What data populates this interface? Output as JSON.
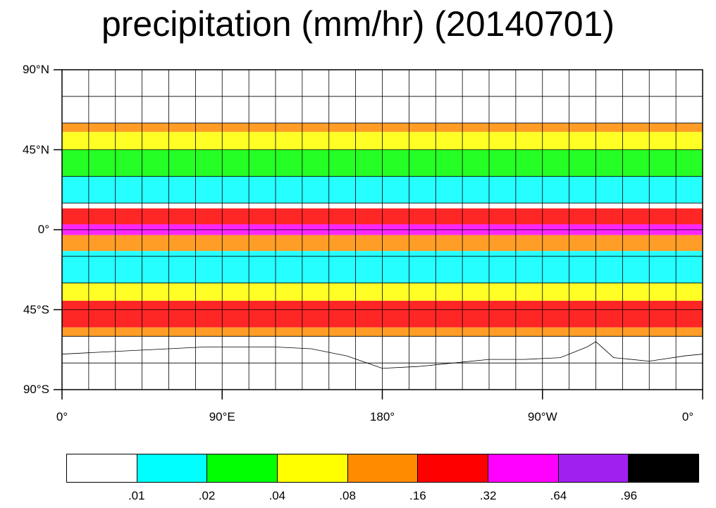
{
  "title": "precipitation (mm/hr) (20140701)",
  "lat_labels": [
    "90°N",
    "45°N",
    "0°",
    "45°S",
    "90°S"
  ],
  "lon_labels": [
    "0°",
    "90°E",
    "180°",
    "90°W",
    "0°"
  ],
  "colorbar": {
    "colors": [
      "#ffffff",
      "#00ffff",
      "#00ff00",
      "#ffff00",
      "#ff8c00",
      "#ff0000",
      "#ff00ff",
      "#a020f0",
      "#000000"
    ],
    "ticks": [
      ".01",
      ".02",
      ".04",
      ".08",
      ".16",
      ".32",
      ".64",
      ".96"
    ]
  },
  "map": {
    "lat_range": [
      -90,
      90
    ],
    "lon_range": [
      0,
      360
    ],
    "data_lat_range": [
      -60,
      60
    ],
    "grid_step_deg": 15,
    "bands": [
      {
        "lat": [
          55,
          60
        ],
        "color": "#ff8c00"
      },
      {
        "lat": [
          45,
          55
        ],
        "color": "#ffff00"
      },
      {
        "lat": [
          30,
          45
        ],
        "color": "#00ff00"
      },
      {
        "lat": [
          15,
          30
        ],
        "color": "#00ffff"
      },
      {
        "lat": [
          3,
          12
        ],
        "color": "#ff0000"
      },
      {
        "lat": [
          -3,
          3
        ],
        "color": "#ff00ff"
      },
      {
        "lat": [
          -12,
          -3
        ],
        "color": "#ff8c00"
      },
      {
        "lat": [
          -30,
          -12
        ],
        "color": "#00ffff"
      },
      {
        "lat": [
          -40,
          -30
        ],
        "color": "#ffff00"
      },
      {
        "lat": [
          -55,
          -40
        ],
        "color": "#ff0000"
      },
      {
        "lat": [
          -60,
          -55
        ],
        "color": "#ff8c00"
      }
    ]
  }
}
